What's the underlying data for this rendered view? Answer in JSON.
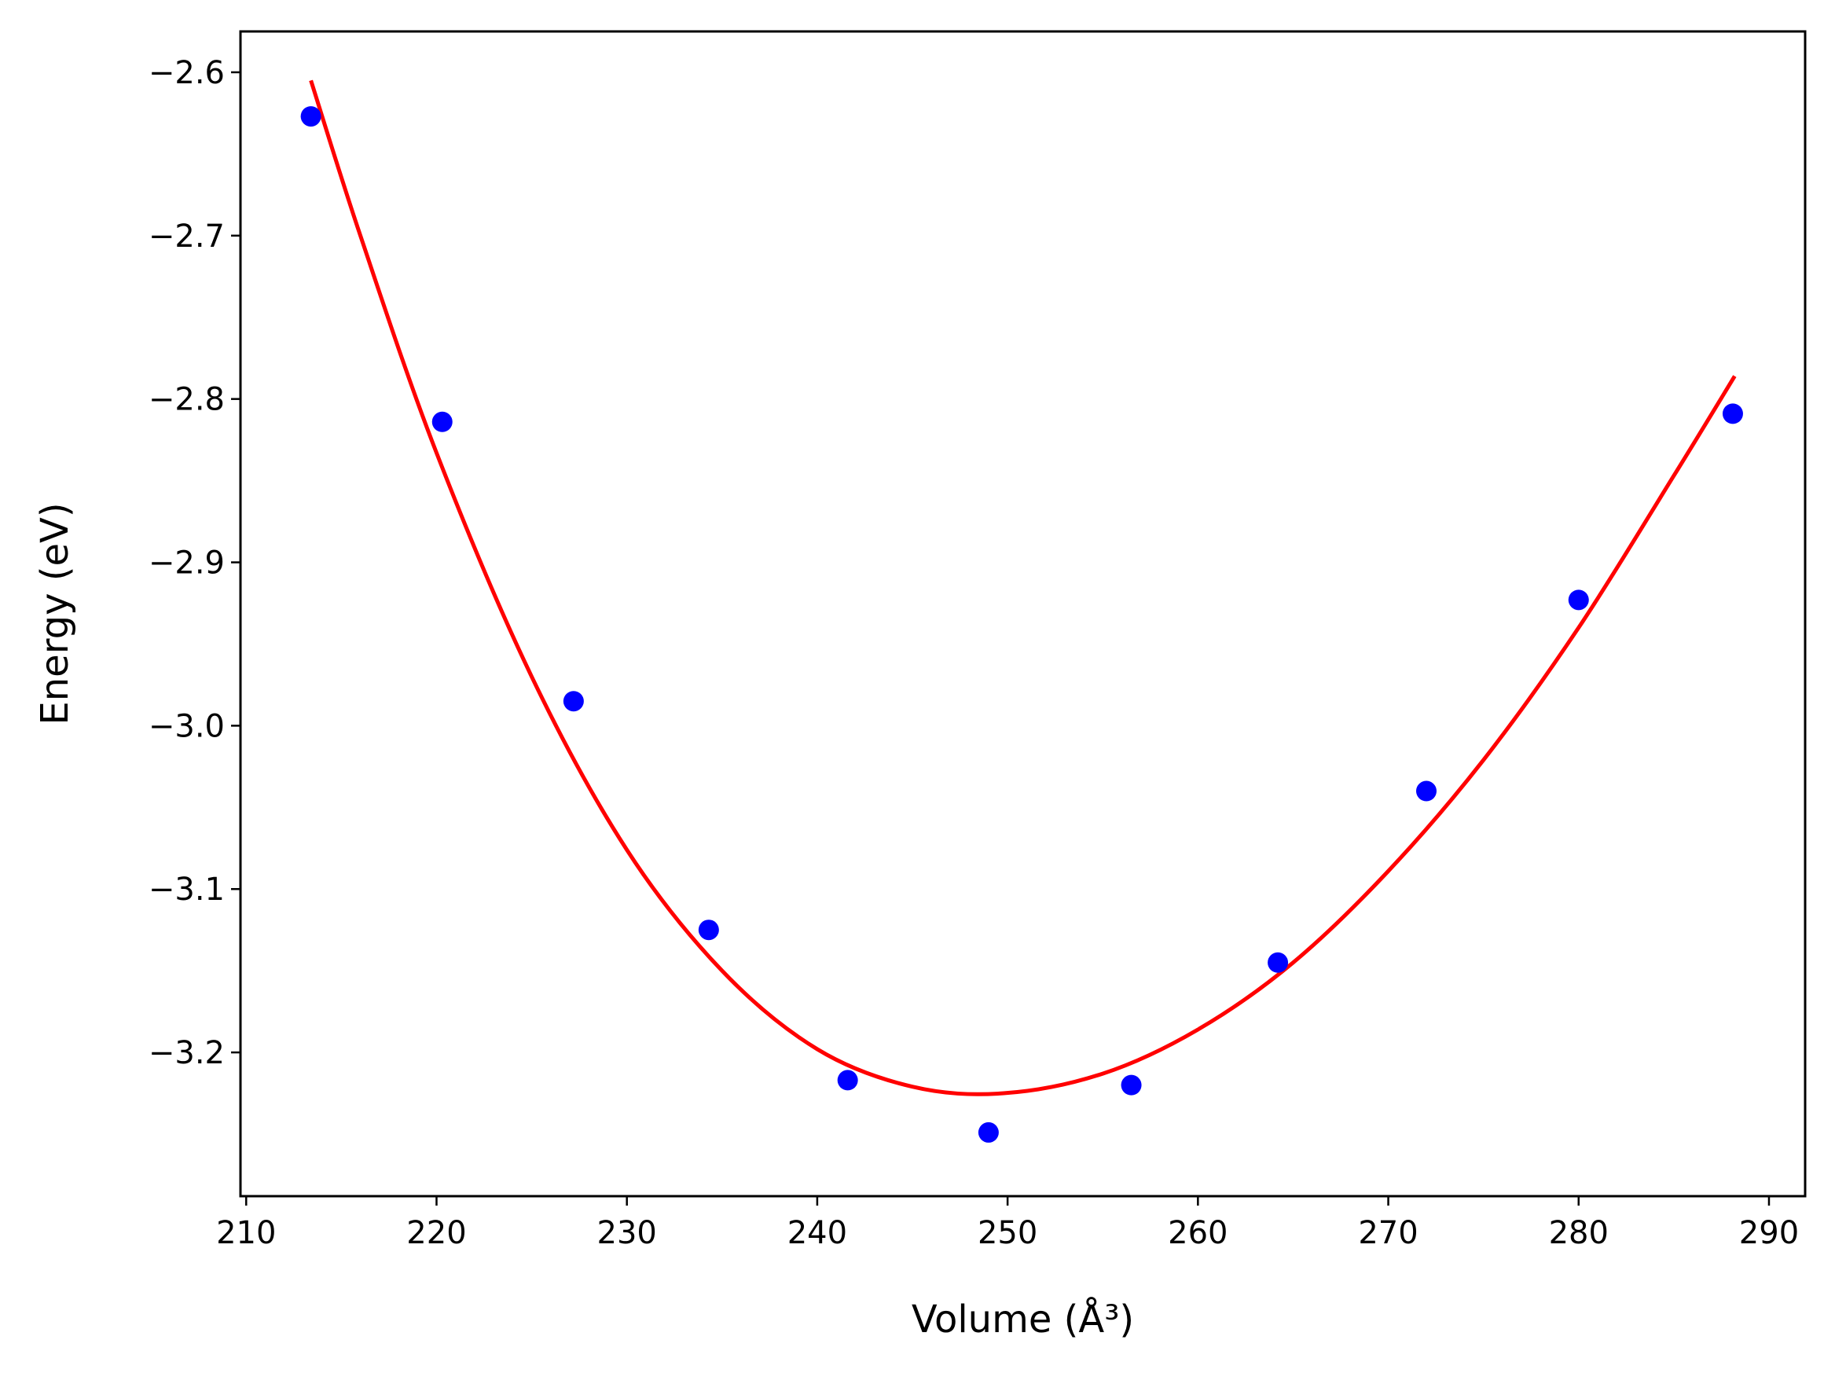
{
  "chart_data": {
    "type": "scatter",
    "title": "",
    "xlabel": "Volume (Å³)",
    "ylabel": "Energy (eV)",
    "xlim": [
      209.7,
      291.9
    ],
    "ylim": [
      -3.288,
      -2.575
    ],
    "xticks": [
      210,
      220,
      230,
      240,
      250,
      260,
      270,
      280,
      290
    ],
    "yticks": [
      -2.6,
      -2.7,
      -2.8,
      -2.9,
      -3.0,
      -3.1,
      -3.2
    ],
    "xtick_labels": [
      "210",
      "220",
      "230",
      "240",
      "250",
      "260",
      "270",
      "280",
      "290"
    ],
    "ytick_labels": [
      "−2.6",
      "−2.7",
      "−2.8",
      "−2.9",
      "−3.0",
      "−3.1",
      "−3.2"
    ],
    "grid": false,
    "legend": "none",
    "series": [
      {
        "kind": "points",
        "color": "#0000ff",
        "x": [
          213.4,
          220.3,
          227.2,
          234.3,
          241.6,
          249.0,
          256.5,
          264.2,
          272.0,
          280.0,
          288.1
        ],
        "y": [
          -2.627,
          -2.814,
          -2.985,
          -3.125,
          -3.217,
          -3.249,
          -3.22,
          -3.145,
          -3.04,
          -2.923,
          -2.809
        ]
      },
      {
        "kind": "fit-curve",
        "color": "#ff0000",
        "x": [
          213.4,
          216.0,
          220.0,
          225.0,
          230.0,
          235.0,
          240.0,
          245.0,
          249.8,
          255.0,
          260.0,
          265.0,
          270.0,
          275.0,
          280.0,
          285.0,
          288.2
        ],
        "y": [
          -2.605,
          -2.7,
          -2.833,
          -2.97,
          -3.076,
          -3.15,
          -3.198,
          -3.221,
          -3.225,
          -3.213,
          -3.186,
          -3.145,
          -3.089,
          -3.021,
          -2.94,
          -2.847,
          -2.786
        ]
      }
    ]
  }
}
